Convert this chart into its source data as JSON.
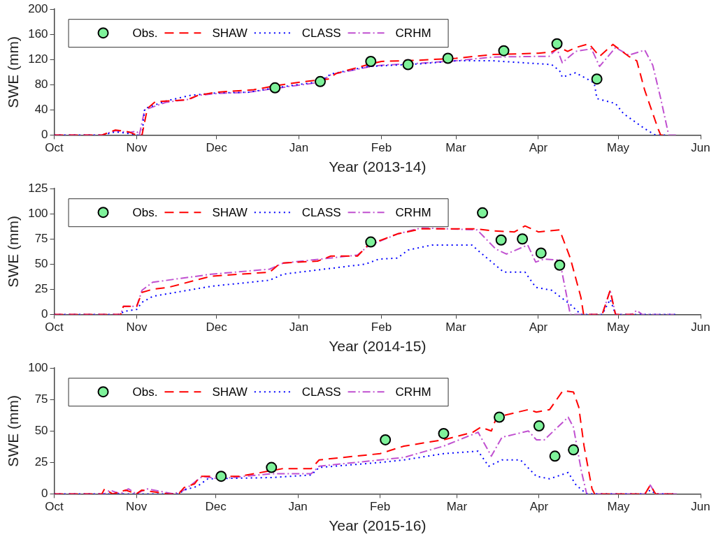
{
  "chart_data": [
    {
      "type": "line",
      "xlabel": "Year (2013-14)",
      "ylabel": "SWE (mm)",
      "legend": "top left",
      "grid": false,
      "xlim": [
        "2013-10-01",
        "2014-06-01"
      ],
      "xticks": [
        {
          "value": "2013-10-01",
          "label": "Oct"
        },
        {
          "value": "2013-11-01",
          "label": "Nov"
        },
        {
          "value": "2013-12-01",
          "label": "Dec"
        },
        {
          "value": "2014-01-01",
          "label": "Jan"
        },
        {
          "value": "2014-02-01",
          "label": "Feb"
        },
        {
          "value": "2014-03-01",
          "label": "Mar"
        },
        {
          "value": "2014-04-01",
          "label": "Apr"
        },
        {
          "value": "2014-05-01",
          "label": "May"
        },
        {
          "value": "2014-06-01",
          "label": "Jun"
        }
      ],
      "ylim": [
        0,
        200
      ],
      "yticks": [
        0,
        40,
        80,
        120,
        160,
        200
      ],
      "series": [
        {
          "name": "Obs.",
          "type": "scatter",
          "marker": "circle",
          "color": "#7ef29a",
          "x": [
            "2013-12-23",
            "2014-01-09",
            "2014-01-28",
            "2014-02-11",
            "2014-02-26",
            "2014-03-19",
            "2014-04-08",
            "2014-04-23"
          ],
          "values": [
            75,
            85,
            117,
            112,
            122,
            134,
            145,
            89
          ]
        },
        {
          "name": "SHAW",
          "type": "line",
          "marker": "none",
          "line_style": "dashed",
          "color": "#ff0000",
          "x": [
            "2013-10-01",
            "2013-10-19",
            "2013-10-24",
            "2013-10-29",
            "2013-11-01",
            "2013-11-03",
            "2013-11-05",
            "2013-11-08",
            "2013-11-20",
            "2013-11-24",
            "2013-12-01",
            "2013-12-15",
            "2013-12-24",
            "2014-01-03",
            "2014-01-12",
            "2014-01-15",
            "2014-01-27",
            "2014-02-01",
            "2014-02-15",
            "2014-03-01",
            "2014-03-15",
            "2014-04-01",
            "2014-04-06",
            "2014-04-09",
            "2014-04-12",
            "2014-04-15",
            "2014-04-20",
            "2014-04-24",
            "2014-04-29",
            "2014-05-05",
            "2014-05-08",
            "2014-05-11",
            "2014-05-16",
            "2014-05-17",
            "2014-05-20"
          ],
          "values": [
            0,
            0,
            8,
            5,
            0,
            0,
            42,
            53,
            56,
            63,
            68,
            72,
            79,
            85,
            89,
            98,
            112,
            117,
            119,
            122,
            128,
            130,
            132,
            139,
            133,
            139,
            145,
            125,
            144,
            125,
            118,
            71,
            10,
            0,
            0
          ]
        },
        {
          "name": "CLASS",
          "type": "line",
          "marker": "none",
          "line_style": "dotted",
          "color": "#0000ff",
          "x": [
            "2013-10-01",
            "2013-10-19",
            "2013-10-24",
            "2013-10-28",
            "2013-11-01",
            "2013-11-03",
            "2013-11-04",
            "2013-11-12",
            "2013-11-21",
            "2013-12-01",
            "2013-12-13",
            "2013-12-23",
            "2014-01-09",
            "2014-01-13",
            "2014-01-27",
            "2014-02-01",
            "2014-02-15",
            "2014-03-01",
            "2014-03-15",
            "2014-04-06",
            "2014-04-09",
            "2014-04-10",
            "2014-04-15",
            "2014-04-22",
            "2014-04-23",
            "2014-04-30",
            "2014-05-03",
            "2014-05-11",
            "2014-05-15",
            "2014-05-20"
          ],
          "values": [
            0,
            0,
            5,
            3,
            0,
            0,
            42,
            54,
            63,
            67,
            68,
            75,
            85,
            97,
            109,
            110,
            113,
            118,
            118,
            112,
            102,
            92,
            99,
            83,
            58,
            50,
            34,
            10,
            0,
            0
          ]
        },
        {
          "name": "CRHM",
          "type": "line",
          "marker": "none",
          "line_style": "dashdot",
          "color": "#c050d0",
          "x": [
            "2013-10-01",
            "2013-10-19",
            "2013-10-24",
            "2013-10-29",
            "2013-11-01",
            "2013-11-02",
            "2013-11-04",
            "2013-11-12",
            "2013-11-21",
            "2013-11-24",
            "2013-12-01",
            "2013-12-13",
            "2013-12-23",
            "2014-01-09",
            "2014-01-13",
            "2014-01-27",
            "2014-02-01",
            "2014-02-15",
            "2014-03-01",
            "2014-03-15",
            "2014-04-01",
            "2014-04-05",
            "2014-04-08",
            "2014-04-10",
            "2014-04-15",
            "2014-04-21",
            "2014-04-24",
            "2014-04-30",
            "2014-05-05",
            "2014-05-11",
            "2014-05-14",
            "2014-05-17",
            "2014-05-20",
            "2014-05-23"
          ],
          "values": [
            0,
            0,
            7,
            4,
            6,
            0,
            40,
            52,
            57,
            63,
            66,
            68,
            74,
            84,
            96,
            108,
            111,
            114,
            118,
            124,
            125,
            125,
            137,
            115,
            133,
            137,
            109,
            139,
            127,
            135,
            111,
            58,
            0,
            0
          ]
        }
      ]
    },
    {
      "type": "line",
      "xlabel": "Year (2014-15)",
      "ylabel": "SWE (mm)",
      "legend": "top left",
      "grid": false,
      "xlim": [
        "2014-10-01",
        "2015-06-01"
      ],
      "xticks": [
        {
          "value": "2014-10-01",
          "label": "Oct"
        },
        {
          "value": "2014-11-01",
          "label": "Nov"
        },
        {
          "value": "2014-12-01",
          "label": "Dec"
        },
        {
          "value": "2015-01-01",
          "label": "Jan"
        },
        {
          "value": "2015-02-01",
          "label": "Feb"
        },
        {
          "value": "2015-03-01",
          "label": "Mar"
        },
        {
          "value": "2015-04-01",
          "label": "Apr"
        },
        {
          "value": "2015-05-01",
          "label": "May"
        },
        {
          "value": "2015-06-01",
          "label": "Jun"
        }
      ],
      "ylim": [
        0,
        125
      ],
      "yticks": [
        0,
        25,
        50,
        75,
        100,
        125
      ],
      "series": [
        {
          "name": "Obs.",
          "type": "scatter",
          "marker": "circle",
          "color": "#7ef29a",
          "x": [
            "2015-01-28",
            "2015-03-11",
            "2015-03-18",
            "2015-03-26",
            "2015-04-02",
            "2015-04-09"
          ],
          "values": [
            72,
            101,
            74,
            75,
            61,
            49
          ]
        },
        {
          "name": "SHAW",
          "type": "line",
          "marker": "none",
          "line_style": "dashed",
          "color": "#ff0000",
          "x": [
            "2014-10-01",
            "2014-10-26",
            "2014-10-27",
            "2014-11-01",
            "2014-11-03",
            "2014-11-07",
            "2014-11-13",
            "2014-11-29",
            "2014-12-21",
            "2014-12-25",
            "2015-01-08",
            "2015-01-13",
            "2015-01-23",
            "2015-01-27",
            "2015-02-07",
            "2015-02-16",
            "2015-03-09",
            "2015-03-15",
            "2015-03-23",
            "2015-03-27",
            "2015-04-01",
            "2015-04-09",
            "2015-04-13",
            "2015-04-17",
            "2015-04-18",
            "2015-04-25",
            "2015-04-28",
            "2015-04-30",
            "2015-05-07"
          ],
          "values": [
            0,
            0,
            8,
            8,
            22,
            25,
            27,
            38,
            42,
            51,
            53,
            58,
            58,
            69,
            80,
            85,
            85,
            83,
            82,
            88,
            82,
            84,
            56,
            17,
            0,
            0,
            24,
            0,
            0
          ]
        },
        {
          "name": "CLASS",
          "type": "line",
          "marker": "none",
          "line_style": "dotted",
          "color": "#0000ff",
          "x": [
            "2014-10-01",
            "2014-10-26",
            "2014-10-27",
            "2014-11-01",
            "2014-11-03",
            "2014-11-07",
            "2014-11-29",
            "2014-12-21",
            "2014-12-26",
            "2015-01-26",
            "2015-01-31",
            "2015-02-07",
            "2015-02-11",
            "2015-02-20",
            "2015-03-07",
            "2015-03-10",
            "2015-03-19",
            "2015-03-27",
            "2015-03-31",
            "2015-04-06",
            "2015-04-13",
            "2015-04-17",
            "2015-04-25",
            "2015-04-28",
            "2015-04-30",
            "2015-05-23"
          ],
          "values": [
            0,
            0,
            3,
            5,
            12,
            18,
            28,
            34,
            40,
            50,
            55,
            56,
            64,
            69,
            69,
            62,
            42,
            42,
            27,
            24,
            10,
            0,
            0,
            15,
            0,
            0
          ]
        },
        {
          "name": "CRHM",
          "type": "line",
          "marker": "none",
          "line_style": "dashdot",
          "color": "#c050d0",
          "x": [
            "2014-10-01",
            "2014-10-26",
            "2014-10-27",
            "2014-11-01",
            "2014-11-03",
            "2014-11-07",
            "2014-11-29",
            "2014-12-21",
            "2014-12-26",
            "2015-01-23",
            "2015-01-27",
            "2015-02-07",
            "2015-02-16",
            "2015-03-09",
            "2015-03-16",
            "2015-03-20",
            "2015-03-28",
            "2015-03-31",
            "2015-04-03",
            "2015-04-09",
            "2015-04-13",
            "2015-04-25",
            "2015-04-28",
            "2015-04-30",
            "2015-05-06",
            "2015-05-08",
            "2015-05-10",
            "2015-05-23"
          ],
          "values": [
            0,
            0,
            8,
            8,
            24,
            32,
            40,
            45,
            51,
            59,
            68,
            80,
            86,
            84,
            65,
            60,
            69,
            52,
            55,
            54,
            0,
            0,
            24,
            0,
            0,
            4,
            0,
            0
          ]
        }
      ]
    },
    {
      "type": "line",
      "xlabel": "Year (2015-16)",
      "ylabel": "SWE (mm)",
      "legend": "top left",
      "grid": false,
      "xlim": [
        "2015-10-01",
        "2016-06-01"
      ],
      "xticks": [
        {
          "value": "2015-10-01",
          "label": "Oct"
        },
        {
          "value": "2015-11-01",
          "label": "Nov"
        },
        {
          "value": "2015-12-01",
          "label": "Dec"
        },
        {
          "value": "2016-01-01",
          "label": "Jan"
        },
        {
          "value": "2016-02-01",
          "label": "Feb"
        },
        {
          "value": "2016-03-01",
          "label": "Mar"
        },
        {
          "value": "2016-04-01",
          "label": "Apr"
        },
        {
          "value": "2016-05-01",
          "label": "May"
        },
        {
          "value": "2016-06-01",
          "label": "Jun"
        }
      ],
      "ylim": [
        0,
        100
      ],
      "yticks": [
        0,
        25,
        50,
        75,
        100
      ],
      "series": [
        {
          "name": "Obs.",
          "type": "scatter",
          "marker": "circle",
          "color": "#7ef29a",
          "x": [
            "2015-12-03",
            "2015-12-22",
            "2016-02-03",
            "2016-02-25",
            "2016-03-17",
            "2016-04-01",
            "2016-04-07",
            "2016-04-14"
          ],
          "values": [
            14,
            21,
            43,
            48,
            61,
            54,
            30,
            35
          ]
        },
        {
          "name": "SHAW",
          "type": "line",
          "marker": "none",
          "line_style": "dashed",
          "color": "#ff0000",
          "x": [
            "2015-10-01",
            "2015-10-19",
            "2015-10-20",
            "2015-10-23",
            "2015-10-28",
            "2015-11-01",
            "2015-11-03",
            "2015-11-13",
            "2015-11-17",
            "2015-11-19",
            "2015-11-23",
            "2015-11-25",
            "2015-12-10",
            "2015-12-26",
            "2016-01-06",
            "2016-01-09",
            "2016-02-01",
            "2016-02-10",
            "2016-02-25",
            "2016-03-07",
            "2016-03-10",
            "2016-03-14",
            "2016-03-16",
            "2016-03-28",
            "2016-03-31",
            "2016-04-05",
            "2016-04-10",
            "2016-04-14",
            "2016-04-16",
            "2016-04-18",
            "2016-04-21",
            "2016-04-22",
            "2016-05-11",
            "2016-05-13",
            "2016-05-15",
            "2016-05-23"
          ],
          "values": [
            0,
            0,
            4,
            0,
            3,
            0,
            3,
            0,
            0,
            5,
            8,
            14,
            14,
            20,
            20,
            27,
            32,
            38,
            43,
            49,
            53,
            50,
            61,
            67,
            65,
            67,
            82,
            81,
            69,
            38,
            4,
            0,
            0,
            7,
            0,
            0
          ]
        },
        {
          "name": "CLASS",
          "type": "line",
          "marker": "none",
          "line_style": "dotted",
          "color": "#0000ff",
          "x": [
            "2015-10-01",
            "2015-11-17",
            "2015-11-19",
            "2015-11-24",
            "2015-11-28",
            "2015-12-22",
            "2016-01-06",
            "2016-01-09",
            "2016-02-01",
            "2016-02-10",
            "2016-02-25",
            "2016-03-09",
            "2016-03-13",
            "2016-03-18",
            "2016-03-25",
            "2016-03-31",
            "2016-04-05",
            "2016-04-12",
            "2016-04-15",
            "2016-04-19",
            "2016-05-11",
            "2016-05-13",
            "2016-05-15",
            "2016-05-23"
          ],
          "values": [
            0,
            0,
            3,
            6,
            12,
            13,
            15,
            21,
            25,
            27,
            32,
            34,
            22,
            27,
            27,
            14,
            12,
            17,
            7,
            0,
            0,
            3,
            0,
            0
          ]
        },
        {
          "name": "CRHM",
          "type": "line",
          "marker": "none",
          "line_style": "dashdot",
          "color": "#c050d0",
          "x": [
            "2015-10-01",
            "2015-10-20",
            "2015-10-22",
            "2015-10-26",
            "2015-10-29",
            "2015-11-01",
            "2015-11-05",
            "2015-11-10",
            "2015-11-15",
            "2015-11-19",
            "2015-11-26",
            "2015-12-02",
            "2015-12-22",
            "2016-01-06",
            "2016-01-09",
            "2016-02-01",
            "2016-02-10",
            "2016-02-25",
            "2016-03-09",
            "2016-03-14",
            "2016-03-18",
            "2016-03-28",
            "2016-03-31",
            "2016-04-03",
            "2016-04-12",
            "2016-04-14",
            "2016-04-17",
            "2016-04-19",
            "2016-05-11",
            "2016-05-13",
            "2016-05-15",
            "2016-05-23"
          ],
          "values": [
            0,
            0,
            3,
            0,
            4,
            0,
            4,
            2,
            0,
            3,
            14,
            12,
            16,
            16,
            22,
            27,
            29,
            38,
            49,
            30,
            45,
            50,
            43,
            43,
            61,
            53,
            18,
            0,
            0,
            7,
            0,
            0
          ]
        }
      ]
    }
  ]
}
